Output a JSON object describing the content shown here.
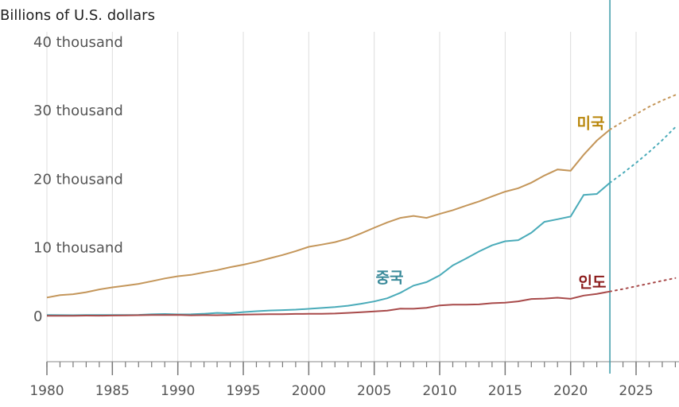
{
  "chart_data": {
    "type": "line",
    "y_axis_label": "Billions of U.S. dollars",
    "x": [
      1980,
      1981,
      1982,
      1983,
      1984,
      1985,
      1986,
      1987,
      1988,
      1989,
      1990,
      1991,
      1992,
      1993,
      1994,
      1995,
      1996,
      1997,
      1998,
      1999,
      2000,
      2001,
      2002,
      2003,
      2004,
      2005,
      2006,
      2007,
      2008,
      2009,
      2010,
      2011,
      2012,
      2013,
      2014,
      2015,
      2016,
      2017,
      2018,
      2019,
      2020,
      2021,
      2022,
      2023,
      2024,
      2025,
      2026,
      2027,
      2028
    ],
    "forecast_from": 2023,
    "series": [
      {
        "name": "미국",
        "color": "#c4965a",
        "label_color": "#b8860b",
        "values": [
          2857,
          3207,
          3343,
          3634,
          4037,
          4339,
          4580,
          4855,
          5236,
          5642,
          5963,
          6158,
          6520,
          6859,
          7287,
          7640,
          8073,
          8578,
          9063,
          9631,
          10251,
          10582,
          10936,
          11458,
          12214,
          13037,
          13815,
          14475,
          14770,
          14478,
          15049,
          15600,
          16254,
          16880,
          17608,
          18295,
          18805,
          19612,
          20657,
          21540,
          21354,
          23681,
          25744,
          27357,
          28500,
          29600,
          30700,
          31600,
          32400
        ]
      },
      {
        "name": "중국",
        "color": "#4aabb9",
        "label_color": "#3a8a9a",
        "values": [
          303,
          290,
          284,
          306,
          314,
          310,
          301,
          327,
          408,
          457,
          395,
          413,
          492,
          617,
          564,
          734,
          864,
          962,
          1029,
          1094,
          1211,
          1339,
          1471,
          1660,
          1955,
          2286,
          2752,
          3550,
          4594,
          5101,
          6087,
          7552,
          8532,
          9570,
          10476,
          11062,
          11233,
          12310,
          13895,
          14280,
          14688,
          17820,
          17963,
          19600,
          21000,
          22500,
          24100,
          25800,
          27700
        ]
      },
      {
        "name": "인도",
        "color": "#a84a4a",
        "label_color": "#8b1a1a",
        "values": [
          186,
          196,
          204,
          222,
          215,
          237,
          253,
          283,
          301,
          301,
          327,
          275,
          293,
          284,
          333,
          367,
          400,
          423,
          429,
          466,
          477,
          494,
          524,
          618,
          722,
          834,
          949,
          1238,
          1224,
          1365,
          1708,
          1823,
          1828,
          1857,
          2039,
          2104,
          2295,
          2651,
          2702,
          2836,
          2672,
          3150,
          3390,
          3737,
          4100,
          4500,
          4900,
          5300,
          5700
        ]
      }
    ],
    "xlim": [
      1980,
      2028.3
    ],
    "ylim": [
      -6500,
      46000
    ],
    "xticks": [
      1980,
      1985,
      1990,
      1995,
      2000,
      2005,
      2010,
      2015,
      2020,
      2025
    ],
    "xminorticks": [
      1980,
      1981,
      1982,
      1983,
      1984,
      1985,
      1986,
      1987,
      1988,
      1989,
      1990,
      1991,
      1992,
      1993,
      1994,
      1995,
      1996,
      1997,
      1998,
      1999,
      2000,
      2001,
      2002,
      2003,
      2004,
      2005,
      2006,
      2007,
      2008,
      2009,
      2010,
      2011,
      2012,
      2013,
      2014,
      2015,
      2016,
      2017,
      2018,
      2019,
      2020,
      2021,
      2022,
      2023,
      2024,
      2025,
      2026,
      2027,
      2028
    ],
    "yticks": [
      0,
      {
        "value": 10000,
        "label": "10 thousand"
      },
      {
        "value": 20000,
        "label": "20 thousand"
      },
      {
        "value": 30000,
        "label": "30 thousand"
      },
      {
        "value": 40000,
        "label": "40 thousand"
      }
    ],
    "grid": true
  }
}
